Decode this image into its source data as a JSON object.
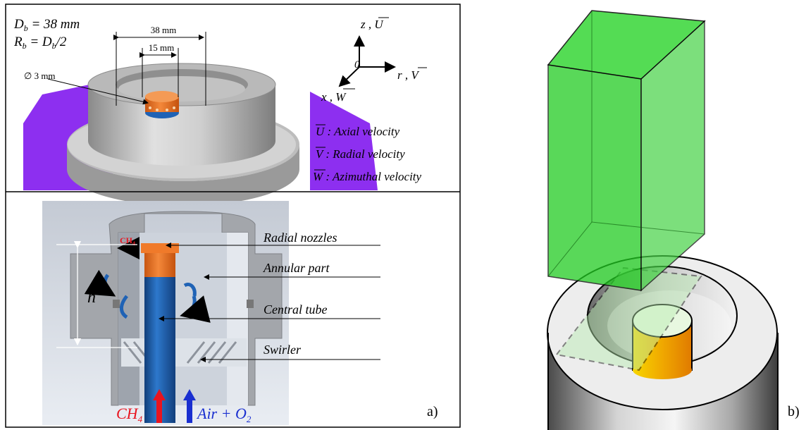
{
  "left_panel": {
    "label": "a)",
    "top": {
      "param_db_text": "D",
      "param_db_sub": "b",
      "param_db_value": " = 38 mm",
      "param_rb_text": "R",
      "param_rb_sub": "b",
      "param_rb_value": " = D",
      "param_rb_sub2": "b",
      "param_rb_tail": "/2",
      "dim_outer": "38 mm",
      "dim_inner": "15 mm",
      "dim_hole": "∅ 3 mm",
      "axis_z": "z , U",
      "axis_r": "r , V",
      "axis_x": "x , W",
      "axis_origin": "0",
      "legend": [
        {
          "sym": "U",
          "text": " : Axial velocity"
        },
        {
          "sym": "V",
          "text": " : Radial velocity"
        },
        {
          "sym": "W",
          "text": " : Azimuthal velocity"
        }
      ]
    },
    "bottom": {
      "h_label": "h",
      "ch4_top": "CH",
      "ch4_top_sub": "4",
      "callouts": [
        "Radial nozzles",
        "Annular part",
        "Central tube",
        "Swirler"
      ],
      "inlet_ch4": "CH",
      "inlet_ch4_sub": "4",
      "inlet_air": "Air + O",
      "inlet_air_sub": "2"
    }
  },
  "right_panel": {
    "label": "b)"
  },
  "colors": {
    "purple": "#8d2ff0",
    "nozzle_orange": "#f07a2a",
    "tube_blue": "#1f62b5",
    "green_box": "#22cc22",
    "gold": "#f2b300",
    "ch4_red": "#e8141f",
    "air_blue": "#1a2fd0"
  }
}
